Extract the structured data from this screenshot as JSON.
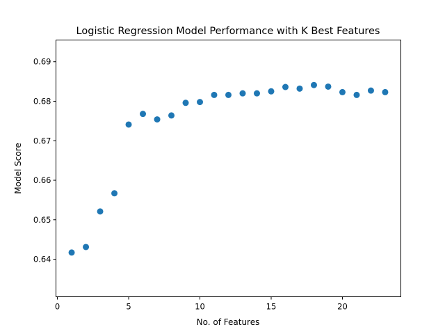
{
  "chart_data": {
    "type": "scatter",
    "title": "Logistic Regression Model Performance with K Best Features",
    "xlabel": "No. of Features",
    "ylabel": "Model Score",
    "xlim": [
      -0.1,
      24.1
    ],
    "ylim": [
      0.6305,
      0.6955
    ],
    "xticks": [
      0,
      5,
      10,
      15,
      20
    ],
    "yticks": [
      0.64,
      0.65,
      0.66,
      0.67,
      0.68,
      0.69
    ],
    "x": [
      1,
      2,
      3,
      4,
      5,
      6,
      7,
      8,
      9,
      10,
      11,
      12,
      13,
      14,
      15,
      16,
      17,
      18,
      19,
      20,
      21,
      22,
      23
    ],
    "y": [
      0.6417,
      0.6431,
      0.6521,
      0.6567,
      0.6741,
      0.6768,
      0.6754,
      0.6764,
      0.6796,
      0.6798,
      0.6816,
      0.6816,
      0.682,
      0.682,
      0.6825,
      0.6836,
      0.6832,
      0.6841,
      0.6837,
      0.6823,
      0.6816,
      0.6827,
      0.6823
    ],
    "grid": false,
    "marker_color": "#1f77b4"
  }
}
